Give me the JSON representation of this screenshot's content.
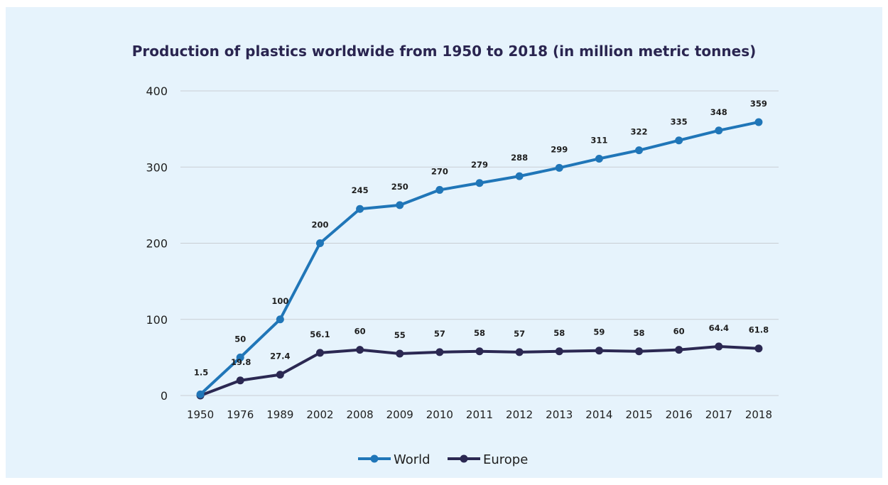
{
  "chart_data": {
    "type": "line",
    "title": "Production of plastics worldwide from 1950 to 2018 (in million metric tonnes)",
    "xlabel": "",
    "ylabel": "",
    "categories": [
      "1950",
      "1976",
      "1989",
      "2002",
      "2008",
      "2009",
      "2010",
      "2011",
      "2012",
      "2013",
      "2014",
      "2015",
      "2016",
      "2017",
      "2018"
    ],
    "ylim": [
      0,
      400
    ],
    "yticks": [
      0,
      100,
      200,
      300,
      400
    ],
    "grid": true,
    "legend_position": "bottom",
    "series": [
      {
        "name": "World",
        "color": "#2076b8",
        "values": [
          1.5,
          50,
          100,
          200,
          245,
          250,
          270,
          279,
          288,
          299,
          311,
          322,
          335,
          348,
          359
        ],
        "labels": [
          "1.5",
          "50",
          "100",
          "200",
          "245",
          "250",
          "270",
          "279",
          "288",
          "299",
          "311",
          "322",
          "335",
          "348",
          "359"
        ]
      },
      {
        "name": "Europe",
        "color": "#2b2852",
        "values": [
          0,
          19.8,
          27.4,
          56.1,
          60,
          55,
          57,
          58,
          57,
          58,
          59,
          58,
          60,
          64.4,
          61.8
        ],
        "labels": [
          "",
          "19.8",
          "27.4",
          "56.1",
          "60",
          "55",
          "57",
          "58",
          "57",
          "58",
          "59",
          "58",
          "60",
          "64.4",
          "61.8"
        ]
      }
    ]
  }
}
